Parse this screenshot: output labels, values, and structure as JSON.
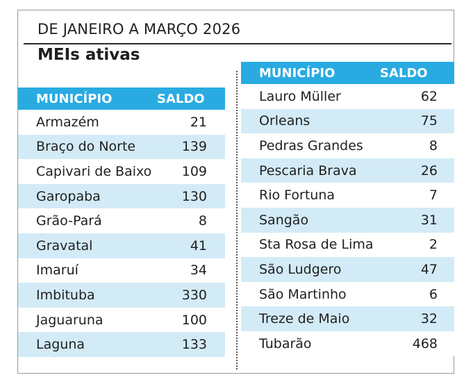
{
  "header": {
    "subtitle": "DE JANEIRO A MARÇO 2026",
    "title": "MEIs ativas"
  },
  "columns": {
    "municipio": "MUNICÍPIO",
    "saldo": "SALDO"
  },
  "left_rows": [
    {
      "municipio": "Armazém",
      "saldo": "21"
    },
    {
      "municipio": "Braço do Norte",
      "saldo": "139"
    },
    {
      "municipio": "Capivari de Baixo",
      "saldo": "109"
    },
    {
      "municipio": "Garopaba",
      "saldo": "130"
    },
    {
      "municipio": "Grão-Pará",
      "saldo": "8"
    },
    {
      "municipio": "Gravatal",
      "saldo": "41"
    },
    {
      "municipio": "Imaruí",
      "saldo": "34"
    },
    {
      "municipio": "Imbituba",
      "saldo": "330"
    },
    {
      "municipio": "Jaguaruna",
      "saldo": "100"
    },
    {
      "municipio": "Laguna",
      "saldo": "133"
    }
  ],
  "right_rows": [
    {
      "municipio": "Lauro Müller",
      "saldo": "62"
    },
    {
      "municipio": "Orleans",
      "saldo": "75"
    },
    {
      "municipio": "Pedras Grandes",
      "saldo": "8"
    },
    {
      "municipio": "Pescaria Brava",
      "saldo": "26"
    },
    {
      "municipio": "Rio Fortuna",
      "saldo": "7"
    },
    {
      "municipio": "Sangão",
      "saldo": "31"
    },
    {
      "municipio": "Sta Rosa de Lima",
      "saldo": "2"
    },
    {
      "municipio": "São Ludgero",
      "saldo": "47"
    },
    {
      "municipio": "São Martinho",
      "saldo": "6"
    },
    {
      "municipio": "Treze de Maio",
      "saldo": "32"
    },
    {
      "municipio": "Tubarão",
      "saldo": "468"
    }
  ],
  "colors": {
    "header_bg": "#29abe2",
    "stripe_bg": "#d3ebf7"
  }
}
